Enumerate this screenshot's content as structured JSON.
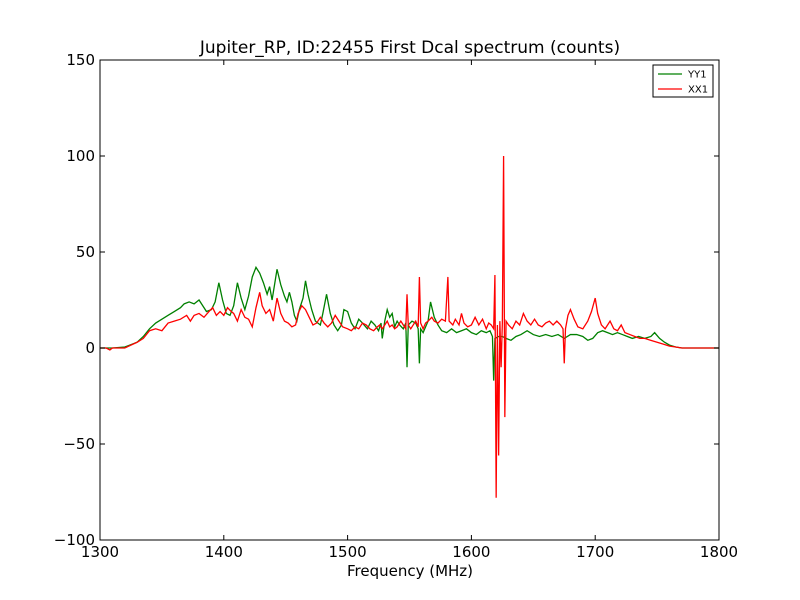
{
  "chart_data": {
    "type": "line",
    "title": "Jupiter_RP, ID:22455 First Dcal spectrum (counts)",
    "xlabel": "Frequency (MHz)",
    "ylabel": "",
    "xlim": [
      1300,
      1800
    ],
    "ylim": [
      -100,
      150
    ],
    "xticks": [
      1300,
      1400,
      1500,
      1600,
      1700,
      1800
    ],
    "yticks": [
      -100,
      -50,
      0,
      50,
      100,
      150
    ],
    "xtick_labels": [
      "1300",
      "1400",
      "1500",
      "1600",
      "1700",
      "1800"
    ],
    "ytick_labels": [
      "−100",
      "−50",
      "0",
      "50",
      "100",
      "150"
    ],
    "grid": false,
    "legend_position": "top-right",
    "series": [
      {
        "name": "YY1",
        "color": "#008000",
        "points": [
          [
            1300,
            0
          ],
          [
            1310,
            0
          ],
          [
            1320,
            0.5
          ],
          [
            1330,
            3
          ],
          [
            1335,
            6
          ],
          [
            1340,
            10
          ],
          [
            1345,
            13
          ],
          [
            1350,
            15
          ],
          [
            1355,
            17
          ],
          [
            1360,
            19
          ],
          [
            1365,
            21
          ],
          [
            1368,
            23
          ],
          [
            1372,
            24
          ],
          [
            1376,
            23
          ],
          [
            1380,
            25
          ],
          [
            1383,
            22
          ],
          [
            1386,
            19
          ],
          [
            1390,
            20
          ],
          [
            1393,
            24
          ],
          [
            1396,
            34
          ],
          [
            1399,
            25
          ],
          [
            1402,
            18
          ],
          [
            1405,
            17
          ],
          [
            1408,
            22
          ],
          [
            1411,
            34
          ],
          [
            1414,
            26
          ],
          [
            1417,
            20
          ],
          [
            1420,
            27
          ],
          [
            1423,
            37
          ],
          [
            1426,
            42
          ],
          [
            1429,
            39
          ],
          [
            1432,
            34
          ],
          [
            1435,
            28
          ],
          [
            1437,
            32
          ],
          [
            1439,
            25
          ],
          [
            1441,
            33
          ],
          [
            1443,
            41
          ],
          [
            1446,
            33
          ],
          [
            1449,
            27
          ],
          [
            1451,
            24
          ],
          [
            1453,
            29
          ],
          [
            1455,
            24
          ],
          [
            1457,
            17
          ],
          [
            1459,
            14
          ],
          [
            1461,
            20
          ],
          [
            1464,
            26
          ],
          [
            1466,
            35
          ],
          [
            1468,
            28
          ],
          [
            1471,
            20
          ],
          [
            1474,
            14
          ],
          [
            1478,
            12
          ],
          [
            1480,
            18
          ],
          [
            1483,
            28
          ],
          [
            1486,
            18
          ],
          [
            1489,
            12
          ],
          [
            1492,
            9
          ],
          [
            1495,
            12
          ],
          [
            1497,
            20
          ],
          [
            1500,
            19
          ],
          [
            1503,
            13
          ],
          [
            1506,
            10
          ],
          [
            1509,
            15
          ],
          [
            1512,
            13
          ],
          [
            1516,
            10
          ],
          [
            1519,
            14
          ],
          [
            1522,
            12
          ],
          [
            1525,
            9
          ],
          [
            1527,
            13
          ],
          [
            1528,
            5
          ],
          [
            1530,
            14
          ],
          [
            1532,
            20
          ],
          [
            1534,
            16
          ],
          [
            1536,
            18
          ],
          [
            1538,
            11
          ],
          [
            1540,
            14
          ],
          [
            1542,
            12
          ],
          [
            1545,
            10
          ],
          [
            1547,
            13
          ],
          [
            1548,
            -10
          ],
          [
            1549,
            12
          ],
          [
            1552,
            14
          ],
          [
            1555,
            13
          ],
          [
            1557,
            10
          ],
          [
            1558,
            -8
          ],
          [
            1559,
            10
          ],
          [
            1561,
            8
          ],
          [
            1563,
            11
          ],
          [
            1565,
            14
          ],
          [
            1567,
            24
          ],
          [
            1570,
            16
          ],
          [
            1573,
            12
          ],
          [
            1576,
            9
          ],
          [
            1580,
            8
          ],
          [
            1584,
            10
          ],
          [
            1588,
            8
          ],
          [
            1592,
            9
          ],
          [
            1596,
            10
          ],
          [
            1600,
            8
          ],
          [
            1604,
            7
          ],
          [
            1608,
            9
          ],
          [
            1612,
            8
          ],
          [
            1615,
            9
          ],
          [
            1617,
            6
          ],
          [
            1618,
            -17
          ],
          [
            1619,
            5
          ],
          [
            1622,
            6
          ],
          [
            1625,
            6
          ],
          [
            1628,
            5
          ],
          [
            1632,
            4
          ],
          [
            1636,
            6
          ],
          [
            1640,
            7
          ],
          [
            1645,
            9
          ],
          [
            1650,
            7
          ],
          [
            1655,
            6
          ],
          [
            1660,
            7
          ],
          [
            1665,
            6
          ],
          [
            1670,
            7
          ],
          [
            1675,
            5
          ],
          [
            1680,
            7
          ],
          [
            1685,
            7
          ],
          [
            1690,
            6
          ],
          [
            1694,
            4
          ],
          [
            1698,
            5
          ],
          [
            1702,
            8
          ],
          [
            1706,
            9
          ],
          [
            1710,
            8
          ],
          [
            1714,
            7
          ],
          [
            1718,
            8
          ],
          [
            1722,
            7
          ],
          [
            1726,
            6
          ],
          [
            1730,
            5
          ],
          [
            1735,
            6
          ],
          [
            1740,
            5
          ],
          [
            1745,
            6
          ],
          [
            1748,
            8
          ],
          [
            1752,
            5
          ],
          [
            1756,
            3
          ],
          [
            1760,
            1.5
          ],
          [
            1765,
            0.5
          ],
          [
            1770,
            0
          ],
          [
            1780,
            0
          ],
          [
            1790,
            0
          ],
          [
            1800,
            0
          ]
        ]
      },
      {
        "name": "XX1",
        "color": "#ff0000",
        "points": [
          [
            1300,
            0
          ],
          [
            1305,
            0
          ],
          [
            1308,
            -1
          ],
          [
            1310,
            0
          ],
          [
            1320,
            0
          ],
          [
            1330,
            3
          ],
          [
            1335,
            5
          ],
          [
            1340,
            9
          ],
          [
            1345,
            10
          ],
          [
            1350,
            9
          ],
          [
            1355,
            13
          ],
          [
            1360,
            14
          ],
          [
            1365,
            15
          ],
          [
            1370,
            17
          ],
          [
            1373,
            14
          ],
          [
            1376,
            17
          ],
          [
            1380,
            18
          ],
          [
            1384,
            16
          ],
          [
            1388,
            19
          ],
          [
            1391,
            21
          ],
          [
            1394,
            17
          ],
          [
            1397,
            19
          ],
          [
            1400,
            17
          ],
          [
            1403,
            21
          ],
          [
            1406,
            19
          ],
          [
            1408,
            18
          ],
          [
            1411,
            14
          ],
          [
            1414,
            20
          ],
          [
            1417,
            16
          ],
          [
            1420,
            15
          ],
          [
            1423,
            11
          ],
          [
            1426,
            21
          ],
          [
            1429,
            29
          ],
          [
            1431,
            22
          ],
          [
            1434,
            18
          ],
          [
            1437,
            20
          ],
          [
            1440,
            14
          ],
          [
            1443,
            26
          ],
          [
            1446,
            18
          ],
          [
            1449,
            14
          ],
          [
            1452,
            13
          ],
          [
            1455,
            11
          ],
          [
            1458,
            12
          ],
          [
            1460,
            18
          ],
          [
            1463,
            22
          ],
          [
            1466,
            20
          ],
          [
            1469,
            16
          ],
          [
            1472,
            12
          ],
          [
            1475,
            13
          ],
          [
            1478,
            16
          ],
          [
            1481,
            13
          ],
          [
            1484,
            11
          ],
          [
            1487,
            13
          ],
          [
            1490,
            17
          ],
          [
            1493,
            14
          ],
          [
            1496,
            11
          ],
          [
            1500,
            10
          ],
          [
            1503,
            9
          ],
          [
            1506,
            11
          ],
          [
            1509,
            10
          ],
          [
            1512,
            13
          ],
          [
            1515,
            12
          ],
          [
            1518,
            10
          ],
          [
            1521,
            9
          ],
          [
            1524,
            11
          ],
          [
            1526,
            12
          ],
          [
            1528,
            10
          ],
          [
            1530,
            12
          ],
          [
            1532,
            14
          ],
          [
            1534,
            11
          ],
          [
            1536,
            12
          ],
          [
            1538,
            10
          ],
          [
            1540,
            11
          ],
          [
            1543,
            14
          ],
          [
            1545,
            12
          ],
          [
            1547,
            10
          ],
          [
            1548,
            28
          ],
          [
            1549,
            12
          ],
          [
            1551,
            10
          ],
          [
            1553,
            12
          ],
          [
            1555,
            14
          ],
          [
            1557,
            11
          ],
          [
            1558,
            37
          ],
          [
            1559,
            13
          ],
          [
            1561,
            10
          ],
          [
            1563,
            13
          ],
          [
            1565,
            14
          ],
          [
            1568,
            16
          ],
          [
            1570,
            14
          ],
          [
            1573,
            13
          ],
          [
            1576,
            15
          ],
          [
            1579,
            14
          ],
          [
            1581,
            37
          ],
          [
            1582,
            14
          ],
          [
            1585,
            12
          ],
          [
            1587,
            15
          ],
          [
            1590,
            12
          ],
          [
            1592,
            18
          ],
          [
            1594,
            13
          ],
          [
            1597,
            11
          ],
          [
            1600,
            12
          ],
          [
            1603,
            16
          ],
          [
            1606,
            12
          ],
          [
            1609,
            15
          ],
          [
            1612,
            10
          ],
          [
            1614,
            13
          ],
          [
            1616,
            12
          ],
          [
            1618,
            10
          ],
          [
            1619,
            38
          ],
          [
            1620,
            -78
          ],
          [
            1621,
            12
          ],
          [
            1622,
            -56
          ],
          [
            1623,
            14
          ],
          [
            1624,
            -10
          ],
          [
            1625,
            13
          ],
          [
            1626,
            100
          ],
          [
            1627,
            -36
          ],
          [
            1628,
            14
          ],
          [
            1630,
            12
          ],
          [
            1633,
            10
          ],
          [
            1636,
            14
          ],
          [
            1639,
            12
          ],
          [
            1642,
            18
          ],
          [
            1645,
            14
          ],
          [
            1648,
            12
          ],
          [
            1651,
            15
          ],
          [
            1654,
            12
          ],
          [
            1657,
            11
          ],
          [
            1660,
            13
          ],
          [
            1663,
            14
          ],
          [
            1666,
            12
          ],
          [
            1669,
            14
          ],
          [
            1672,
            12
          ],
          [
            1674,
            10
          ],
          [
            1675,
            -8
          ],
          [
            1676,
            10
          ],
          [
            1678,
            17
          ],
          [
            1680,
            20
          ],
          [
            1683,
            15
          ],
          [
            1686,
            11
          ],
          [
            1690,
            10
          ],
          [
            1694,
            14
          ],
          [
            1697,
            19
          ],
          [
            1700,
            26
          ],
          [
            1702,
            18
          ],
          [
            1705,
            12
          ],
          [
            1708,
            10
          ],
          [
            1712,
            14
          ],
          [
            1715,
            10
          ],
          [
            1718,
            9
          ],
          [
            1721,
            12
          ],
          [
            1724,
            8
          ],
          [
            1728,
            7
          ],
          [
            1732,
            6
          ],
          [
            1736,
            5
          ],
          [
            1740,
            5
          ],
          [
            1745,
            4
          ],
          [
            1750,
            3
          ],
          [
            1755,
            2
          ],
          [
            1760,
            1
          ],
          [
            1765,
            0.5
          ],
          [
            1770,
            0
          ],
          [
            1780,
            0
          ],
          [
            1790,
            0
          ],
          [
            1800,
            0
          ]
        ]
      }
    ]
  }
}
